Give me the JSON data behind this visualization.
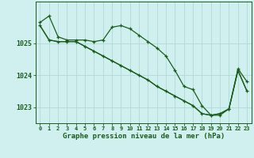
{
  "xlabel": "Graphe pression niveau de la mer (hPa)",
  "bg_color": "#d0f0f0",
  "grid_color": "#b0d8d8",
  "line_color": "#1a5c1a",
  "x_ticks": [
    0,
    1,
    2,
    3,
    4,
    5,
    6,
    7,
    8,
    9,
    10,
    11,
    12,
    13,
    14,
    15,
    16,
    17,
    18,
    19,
    20,
    21,
    22,
    23
  ],
  "ylim": [
    1022.5,
    1026.3
  ],
  "yticks": [
    1023,
    1024,
    1025
  ],
  "series1_x": [
    0,
    1,
    2,
    3,
    4,
    5,
    6,
    7,
    8,
    9,
    10,
    11,
    12,
    13,
    14,
    15,
    16,
    17,
    18,
    19,
    20,
    21,
    22,
    23
  ],
  "series1_y": [
    1025.65,
    1025.85,
    1025.2,
    1025.1,
    1025.1,
    1025.1,
    1025.05,
    1025.1,
    1025.5,
    1025.55,
    1025.45,
    1025.25,
    1025.05,
    1024.85,
    1024.6,
    1024.15,
    1023.65,
    1023.55,
    1023.05,
    1022.75,
    1022.75,
    1022.95,
    1024.2,
    1023.8
  ],
  "series2_x": [
    0,
    1,
    2,
    3,
    4,
    5,
    6,
    7,
    8,
    9,
    10,
    11,
    12,
    13,
    14,
    15,
    16,
    17,
    18,
    19,
    20,
    21,
    22,
    23
  ],
  "series2_y": [
    1025.55,
    1025.1,
    1025.05,
    1025.05,
    1025.05,
    1024.9,
    1024.75,
    1024.6,
    1024.45,
    1024.3,
    1024.15,
    1024.0,
    1023.85,
    1023.65,
    1023.5,
    1023.35,
    1023.2,
    1023.05,
    1022.8,
    1022.75,
    1022.8,
    1022.95,
    1024.15,
    1023.5
  ],
  "series3_x": [
    0,
    1,
    2,
    3,
    4,
    5,
    6,
    7,
    8,
    9,
    10,
    11,
    12,
    13,
    14,
    15,
    16,
    17,
    18,
    19,
    20,
    21,
    22,
    23
  ],
  "series3_y": [
    1025.55,
    1025.1,
    1025.05,
    1025.05,
    1025.05,
    1024.9,
    1024.75,
    1024.6,
    1024.45,
    1024.3,
    1024.15,
    1024.0,
    1023.85,
    1023.65,
    1023.5,
    1023.35,
    1023.2,
    1023.05,
    1022.8,
    1022.75,
    1022.8,
    1022.95,
    1024.15,
    1023.5
  ]
}
